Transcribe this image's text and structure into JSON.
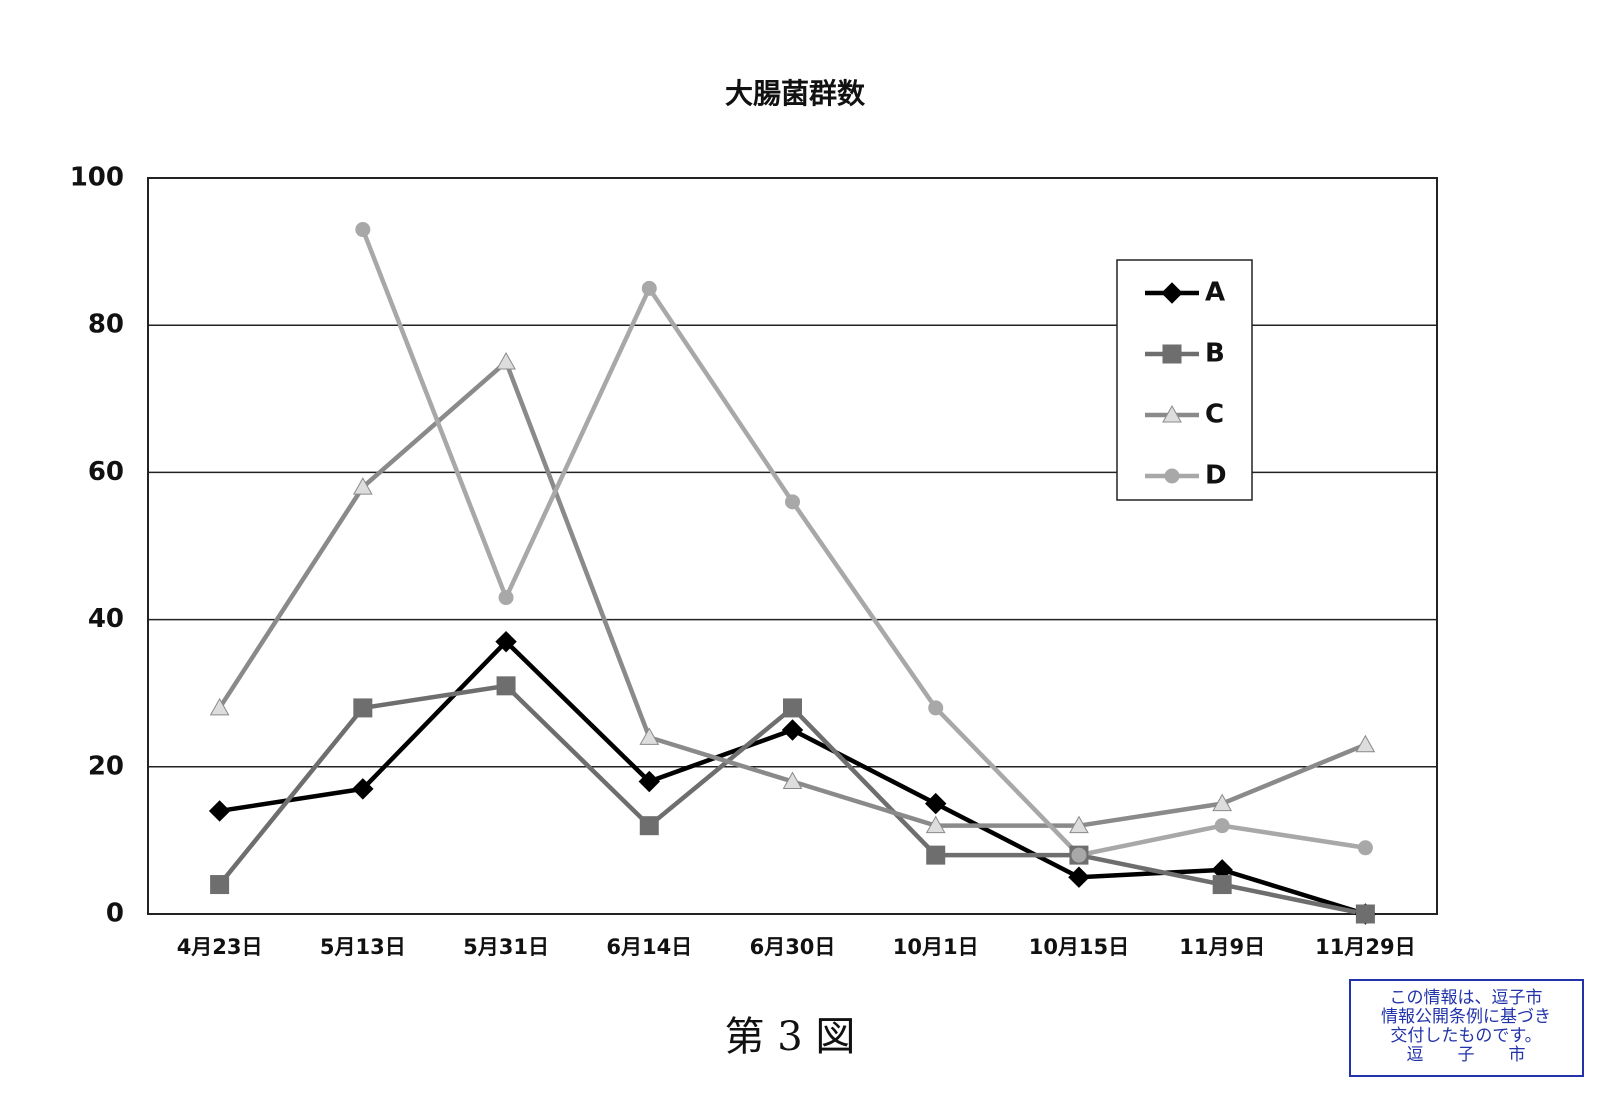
{
  "chart_data": {
    "type": "line",
    "title": "大腸菌群数",
    "categories": [
      "4月23日",
      "5月13日",
      "5月31日",
      "6月14日",
      "6月30日",
      "10月1日",
      "10月15日",
      "11月9日",
      "11月29日"
    ],
    "series": [
      {
        "name": "A",
        "color": "#000000",
        "marker": "diamond",
        "values": [
          14,
          17,
          37,
          18,
          25,
          15,
          5,
          6,
          0
        ]
      },
      {
        "name": "B",
        "color": "#6e6e6e",
        "marker": "square",
        "values": [
          4,
          28,
          31,
          12,
          28,
          8,
          8,
          4,
          0
        ]
      },
      {
        "name": "C",
        "color": "#8a8a8a",
        "marker": "triangle",
        "values": [
          28,
          58,
          75,
          24,
          18,
          12,
          12,
          15,
          23
        ]
      },
      {
        "name": "D",
        "color": "#a8a8a8",
        "marker": "circle",
        "values": [
          null,
          93,
          43,
          85,
          56,
          28,
          8,
          12,
          9
        ]
      }
    ],
    "ylim": [
      0,
      100
    ],
    "yticks": [
      0,
      20,
      40,
      60,
      80,
      100
    ],
    "grid": true,
    "legend": "upper right"
  },
  "figure_label": "第 3 図",
  "stamp": [
    "この情報は、逗子市",
    "情報公開条例に基づき",
    "交付したものです。",
    "逗　　子　　市"
  ]
}
